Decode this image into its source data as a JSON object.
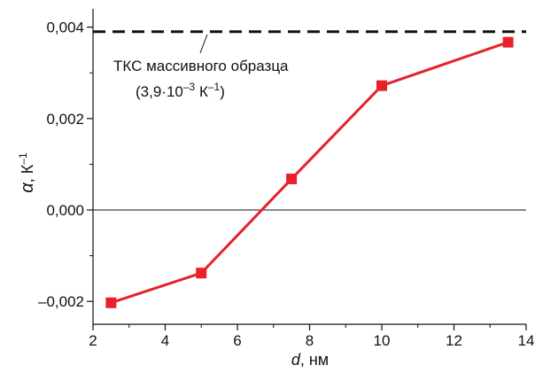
{
  "chart_data": {
    "type": "line",
    "x": [
      2.5,
      5.0,
      7.5,
      10.0,
      13.5
    ],
    "series": [
      {
        "values": [
          -0.00203,
          -0.00138,
          0.00068,
          0.00272,
          0.00367
        ]
      }
    ],
    "xlim": [
      2,
      14
    ],
    "ylim": [
      -0.0025,
      0.0044
    ],
    "x_ticks": [
      2,
      4,
      6,
      8,
      10,
      12,
      14
    ],
    "x_tick_labels": [
      "2",
      "4",
      "6",
      "8",
      "10",
      "12",
      "14"
    ],
    "y_ticks": [
      -0.002,
      0.0,
      0.002,
      0.004
    ],
    "y_tick_labels": [
      "–0,002",
      "0,000",
      "0,002",
      "0,004"
    ],
    "xlabel": {
      "symbol": "d",
      "rest": ", нм"
    },
    "ylabel": {
      "symbol": "α",
      "rest": ", К",
      "sup": "–1"
    },
    "reference_line": {
      "value": 0.0039,
      "label_line1": "ТКС массивного образца",
      "label_line2_a": "(3,9·10",
      "label_line2_sup1": "–3",
      "label_line2_b": " К",
      "label_line2_sup2": "–1",
      "label_line2_c": ")"
    },
    "zero_line": true,
    "grid": false,
    "colors": {
      "series": "#e8202a",
      "reference": "#111111",
      "axis": "#111111"
    }
  }
}
